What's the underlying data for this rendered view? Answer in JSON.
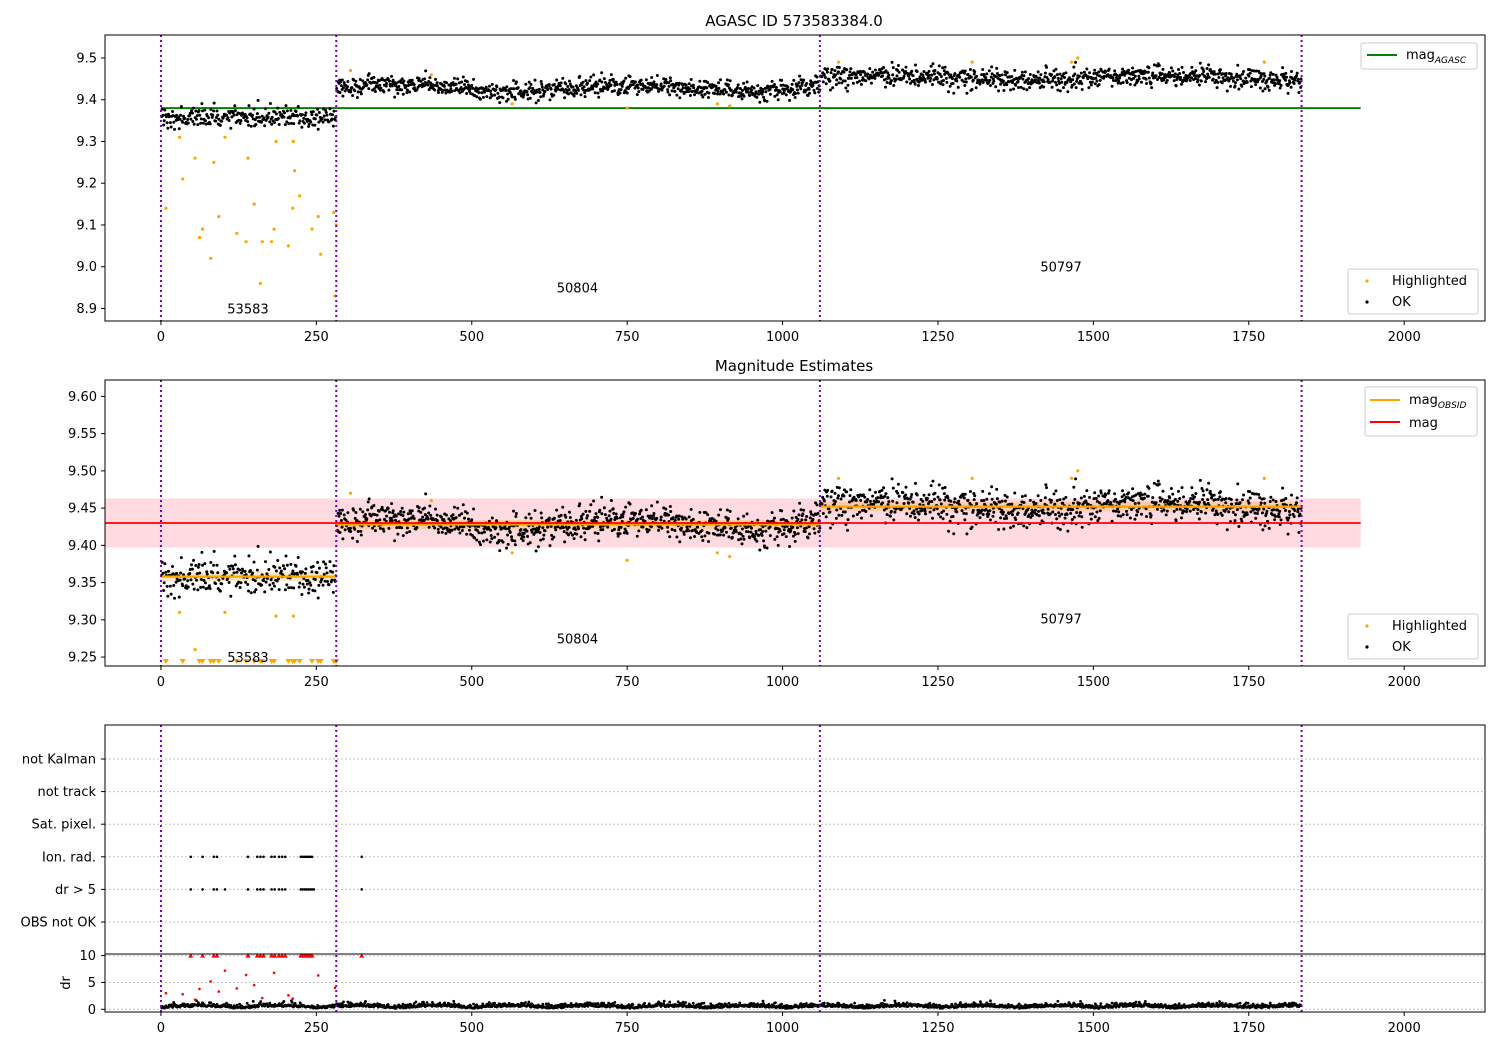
{
  "figure": {
    "background": "#ffffff"
  },
  "colors": {
    "ok": "#000000",
    "highlighted": "#ffa500",
    "mag_agasc": "#008000",
    "mag_obsid": "#ffa500",
    "mag": "#ff0000",
    "mag_band": "#ffb6c1",
    "obs_line": "#7b00a8",
    "dr_flag": "#ff0000"
  },
  "chart_data": [
    {
      "type": "scatter",
      "panel": "agasc",
      "title": "AGASC ID 573583384.0",
      "xlim": [
        -90,
        2130
      ],
      "ylim": [
        8.87,
        9.555
      ],
      "xticks": [
        0,
        250,
        500,
        750,
        1000,
        1250,
        1500,
        1750,
        2000
      ],
      "yticks": [
        8.9,
        9.0,
        9.1,
        9.2,
        9.3,
        9.4,
        9.5
      ],
      "ytick_labels": [
        "8.9",
        "9.0",
        "9.1",
        "9.2",
        "9.3",
        "9.4",
        "9.5"
      ],
      "obsid_boundaries": [
        0,
        282,
        1060,
        1835
      ],
      "obsid_labels": [
        {
          "text": "53583",
          "x": 140,
          "y": 8.9
        },
        {
          "text": "50804",
          "x": 670,
          "y": 8.95
        },
        {
          "text": "50797",
          "x": 1448,
          "y": 9.0
        }
      ],
      "lines": [
        {
          "name": "mag_AGASC",
          "x": [
            0,
            1930
          ],
          "y": 9.38
        }
      ],
      "segments": [
        {
          "x0": 0,
          "x1": 282,
          "mean": 9.358,
          "sd": 0.012
        },
        {
          "x0": 282,
          "x1": 1060,
          "mean": 9.428,
          "sd": 0.011
        },
        {
          "x0": 1060,
          "x1": 1835,
          "mean": 9.452,
          "sd": 0.012
        }
      ],
      "highlighted": [
        [
          8,
          9.14
        ],
        [
          30,
          9.31
        ],
        [
          35,
          9.21
        ],
        [
          55,
          9.26
        ],
        [
          62,
          9.07
        ],
        [
          67,
          9.09
        ],
        [
          80,
          9.02
        ],
        [
          85,
          9.25
        ],
        [
          93,
          9.12
        ],
        [
          103,
          9.31
        ],
        [
          122,
          9.08
        ],
        [
          137,
          9.06
        ],
        [
          140,
          9.26
        ],
        [
          150,
          9.15
        ],
        [
          160,
          8.96
        ],
        [
          163,
          9.06
        ],
        [
          178,
          9.06
        ],
        [
          182,
          9.09
        ],
        [
          185,
          9.3
        ],
        [
          205,
          9.05
        ],
        [
          212,
          9.14
        ],
        [
          213,
          9.3
        ],
        [
          215,
          9.23
        ],
        [
          223,
          9.17
        ],
        [
          243,
          9.09
        ],
        [
          253,
          9.12
        ],
        [
          257,
          9.03
        ],
        [
          278,
          9.13
        ],
        [
          280,
          8.93
        ],
        [
          282,
          9.1
        ],
        [
          305,
          9.47
        ],
        [
          435,
          9.46
        ],
        [
          565,
          9.39
        ],
        [
          750,
          9.38
        ],
        [
          895,
          9.39
        ],
        [
          915,
          9.385
        ],
        [
          1090,
          9.49
        ],
        [
          1305,
          9.49
        ],
        [
          1465,
          9.49
        ],
        [
          1475,
          9.5
        ],
        [
          1775,
          9.49
        ]
      ],
      "legends": [
        {
          "position": "upper right",
          "items": [
            {
              "label": "mag",
              "sub": "AGASC",
              "kind": "line",
              "color": "#008000"
            }
          ]
        },
        {
          "position": "lower right",
          "items": [
            {
              "label": "Highlighted",
              "kind": "dot",
              "color": "#ffa500"
            },
            {
              "label": "OK",
              "kind": "dot",
              "color": "#000000"
            }
          ]
        }
      ]
    },
    {
      "type": "scatter",
      "panel": "estimates",
      "title": "Magnitude Estimates",
      "xlim": [
        -90,
        2130
      ],
      "ylim": [
        9.238,
        9.622
      ],
      "xticks": [
        0,
        250,
        500,
        750,
        1000,
        1250,
        1500,
        1750,
        2000
      ],
      "yticks": [
        9.25,
        9.3,
        9.35,
        9.4,
        9.45,
        9.5,
        9.55,
        9.6
      ],
      "ytick_labels": [
        "9.25",
        "9.30",
        "9.35",
        "9.40",
        "9.45",
        "9.50",
        "9.55",
        "9.60"
      ],
      "obsid_boundaries": [
        0,
        282,
        1060,
        1835
      ],
      "obsid_labels": [
        {
          "text": "53583",
          "x": 140,
          "y": 9.25
        },
        {
          "text": "50804",
          "x": 670,
          "y": 9.275
        },
        {
          "text": "50797",
          "x": 1448,
          "y": 9.302
        }
      ],
      "mag": {
        "value": 9.43,
        "lo": 9.397,
        "hi": 9.463,
        "x": [
          -90,
          1930
        ]
      },
      "mag_obsid": [
        {
          "x0": 0,
          "x1": 282,
          "value": 9.358,
          "lo": 9.352,
          "hi": 9.364
        },
        {
          "x0": 282,
          "x1": 1060,
          "value": 9.428,
          "lo": 9.422,
          "hi": 9.434
        },
        {
          "x0": 1060,
          "x1": 1835,
          "value": 9.452,
          "lo": 9.446,
          "hi": 9.458
        }
      ],
      "highlighted": [
        [
          30,
          9.31
        ],
        [
          55,
          9.26
        ],
        [
          103,
          9.31
        ],
        [
          185,
          9.305
        ],
        [
          213,
          9.305
        ],
        [
          305,
          9.47
        ],
        [
          435,
          9.46
        ],
        [
          565,
          9.39
        ],
        [
          750,
          9.38
        ],
        [
          895,
          9.39
        ],
        [
          915,
          9.385
        ],
        [
          1090,
          9.49
        ],
        [
          1305,
          9.49
        ],
        [
          1465,
          9.49
        ],
        [
          1475,
          9.5
        ],
        [
          1775,
          9.49
        ]
      ],
      "below_range_markers": [
        8,
        35,
        62,
        67,
        80,
        85,
        93,
        122,
        137,
        150,
        160,
        163,
        178,
        182,
        205,
        212,
        215,
        223,
        243,
        253,
        257,
        278,
        280,
        282
      ],
      "legends": [
        {
          "position": "upper right",
          "items": [
            {
              "label": "mag",
              "sub": "OBSID",
              "kind": "line",
              "color": "#ffa500"
            },
            {
              "label": "mag",
              "kind": "line",
              "color": "#ff0000"
            }
          ]
        },
        {
          "position": "lower right",
          "items": [
            {
              "label": "Highlighted",
              "kind": "dot",
              "color": "#ffa500"
            },
            {
              "label": "OK",
              "kind": "dot",
              "color": "#000000"
            }
          ]
        }
      ]
    },
    {
      "type": "scatter",
      "panel": "flags",
      "xlim": [
        -90,
        2130
      ],
      "xticks": [
        0,
        250,
        500,
        750,
        1000,
        1250,
        1500,
        1750,
        2000
      ],
      "obsid_boundaries": [
        0,
        282,
        1060,
        1835
      ],
      "flag_rows": [
        "not Kalman",
        "not track",
        "Sat. pixel.",
        "Ion. rad.",
        "dr > 5",
        "OBS not OK"
      ],
      "flag_points": [
        {
          "row": "Ion. rad.",
          "x": [
            48,
            67,
            85,
            90,
            140,
            155,
            160,
            165,
            178,
            183,
            190,
            195,
            200,
            225,
            228,
            231,
            234,
            237,
            240,
            243,
            323
          ]
        },
        {
          "row": "dr > 5",
          "x": [
            48,
            67,
            85,
            90,
            103,
            140,
            155,
            160,
            165,
            178,
            183,
            190,
            195,
            200,
            225,
            228,
            231,
            234,
            237,
            240,
            243,
            246,
            323
          ]
        }
      ],
      "dr": {
        "ylabel": "dr",
        "ylim": [
          -0.5,
          10.3
        ],
        "yticks": [
          0,
          5,
          10
        ],
        "ytick_labels": [
          "0",
          "5",
          "10"
        ],
        "capped_at_10": [
          48,
          67,
          85,
          90,
          140,
          155,
          160,
          165,
          178,
          183,
          190,
          195,
          200,
          225,
          228,
          231,
          234,
          237,
          240,
          243,
          323
        ],
        "scattered": [
          [
            8,
            3.0
          ],
          [
            35,
            2.8
          ],
          [
            55,
            1.8
          ],
          [
            62,
            3.8
          ],
          [
            80,
            5.2
          ],
          [
            93,
            3.3
          ],
          [
            103,
            7.2
          ],
          [
            122,
            3.9
          ],
          [
            137,
            6.4
          ],
          [
            150,
            4.5
          ],
          [
            163,
            2.1
          ],
          [
            182,
            6.8
          ],
          [
            205,
            2.6
          ],
          [
            212,
            2.0
          ],
          [
            253,
            6.3
          ],
          [
            280,
            4.0
          ]
        ]
      }
    }
  ]
}
